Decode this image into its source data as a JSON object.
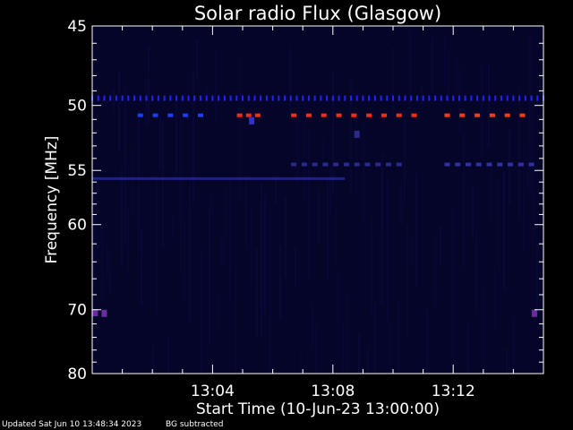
{
  "chart_data": {
    "type": "heatmap",
    "title": "Solar radio Flux (Glasgow)",
    "xlabel": "Start Time (10-Jun-23 13:00:00)",
    "ylabel": "Frequency [MHz]",
    "x_range_minutes": [
      0,
      15
    ],
    "x_ticks": [
      {
        "minute": 4,
        "label": "13:04"
      },
      {
        "minute": 8,
        "label": "13:08"
      },
      {
        "minute": 12,
        "label": "13:12"
      }
    ],
    "y_range_mhz": [
      45,
      80
    ],
    "y_ticks": [
      {
        "mhz": 45,
        "label": "45"
      },
      {
        "mhz": 50,
        "label": "50"
      },
      {
        "mhz": 55,
        "label": "55"
      },
      {
        "mhz": 60,
        "label": "60"
      },
      {
        "mhz": 70,
        "label": "70"
      },
      {
        "mhz": 80,
        "label": "80"
      }
    ],
    "y_minor_ticks_mhz": [
      46,
      47,
      48,
      49,
      51,
      52,
      53,
      54,
      56,
      57,
      58,
      59,
      62,
      64,
      66,
      68,
      72,
      74,
      76,
      78
    ],
    "background_color": "#05052a",
    "features": [
      {
        "kind": "dotted-line",
        "mhz": 49.5,
        "start_min": 0.0,
        "end_min": 15.0,
        "step_min": 0.2,
        "color": "#2222ff"
      },
      {
        "kind": "dashed-line",
        "mhz": 50.7,
        "start_min": 1.6,
        "end_min": 3.8,
        "step_min": 0.5,
        "color": "#1a3cff"
      },
      {
        "kind": "dashed-line",
        "mhz": 50.7,
        "start_min": 6.7,
        "end_min": 10.7,
        "step_min": 0.5,
        "color": "#ff2a10"
      },
      {
        "kind": "dashed-line",
        "mhz": 50.7,
        "start_min": 11.8,
        "end_min": 14.6,
        "step_min": 0.5,
        "color": "#ff3a10"
      },
      {
        "kind": "dashed-line",
        "mhz": 50.7,
        "start_min": 4.9,
        "end_min": 5.5,
        "step_min": 0.3,
        "color": "#ff2a10"
      },
      {
        "kind": "dashed-line",
        "mhz": 54.5,
        "start_min": 6.7,
        "end_min": 10.5,
        "step_min": 0.35,
        "color": "#2a2a8a"
      },
      {
        "kind": "dashed-line",
        "mhz": 54.5,
        "start_min": 11.8,
        "end_min": 14.6,
        "step_min": 0.35,
        "color": "#3030a0"
      },
      {
        "kind": "solid-line",
        "mhz": 55.7,
        "start_min": 0.0,
        "end_min": 8.4,
        "color": "#20208a"
      },
      {
        "kind": "dot",
        "mhz": 70.4,
        "minute": 0.1,
        "color": "#6a2aa0"
      },
      {
        "kind": "dot",
        "mhz": 70.5,
        "minute": 0.4,
        "color": "#6a2aa0"
      },
      {
        "kind": "dot",
        "mhz": 70.5,
        "minute": 14.7,
        "color": "#6a2aa0"
      },
      {
        "kind": "dot",
        "mhz": 51.1,
        "minute": 5.3,
        "color": "#3030d0"
      },
      {
        "kind": "dot",
        "mhz": 52.1,
        "minute": 8.8,
        "color": "#2a2a8a"
      }
    ]
  },
  "footer": {
    "updated": "Updated Sat Jun 10 13:48:34 2023",
    "note": "BG subtracted"
  }
}
